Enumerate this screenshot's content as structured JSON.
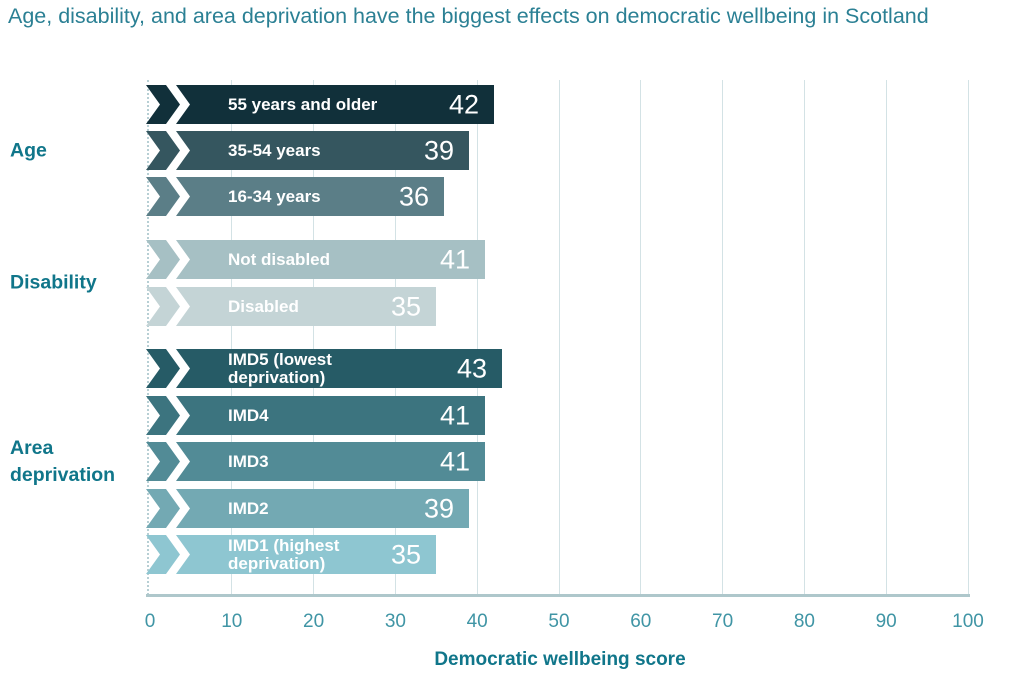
{
  "title": "Age, disability, and area deprivation have the biggest effects on democratic wellbeing in Scotland",
  "palette": {
    "title_text": "#2b8094",
    "group_label_text": "#10768a",
    "tick_text": "#4095a5",
    "axis_title_text": "#10768a",
    "gridline": "#d3e2e5",
    "baseline": "#aec7cb",
    "bar_text": "#ffffff"
  },
  "chart_data": {
    "type": "bar",
    "orientation": "horizontal",
    "title": "Age, disability, and area deprivation have the biggest effects on democratic wellbeing in Scotland",
    "xlabel": "Democratic wellbeing score",
    "ylabel": "",
    "xlim": [
      0,
      100
    ],
    "x_ticks": [
      0,
      10,
      20,
      30,
      40,
      50,
      60,
      70,
      80,
      90,
      100
    ],
    "grid": true,
    "legend": false,
    "groups": [
      {
        "label": "Age",
        "bars": [
          {
            "label_lines": [
              "55 years and older"
            ],
            "value": 42,
            "color": "#11303a"
          },
          {
            "label_lines": [
              "35-54 years"
            ],
            "value": 39,
            "color": "#35565f"
          },
          {
            "label_lines": [
              "16-34 years"
            ],
            "value": 36,
            "color": "#5b7e87"
          }
        ]
      },
      {
        "label": "Disability",
        "bars": [
          {
            "label_lines": [
              "Not disabled"
            ],
            "value": 41,
            "color": "#a6c0c4"
          },
          {
            "label_lines": [
              "Disabled"
            ],
            "value": 35,
            "color": "#c4d4d6"
          }
        ]
      },
      {
        "label": "Area deprivation",
        "bars": [
          {
            "label_lines": [
              "IMD5 (lowest",
              "deprivation)"
            ],
            "value": 43,
            "color": "#265b66"
          },
          {
            "label_lines": [
              "IMD4"
            ],
            "value": 41,
            "color": "#3c747f"
          },
          {
            "label_lines": [
              "IMD3"
            ],
            "value": 41,
            "color": "#528b96"
          },
          {
            "label_lines": [
              "IMD2"
            ],
            "value": 39,
            "color": "#73a9b3"
          },
          {
            "label_lines": [
              "IMD1 (highest",
              "deprivation)"
            ],
            "value": 35,
            "color": "#8ec6d1"
          }
        ]
      }
    ]
  }
}
